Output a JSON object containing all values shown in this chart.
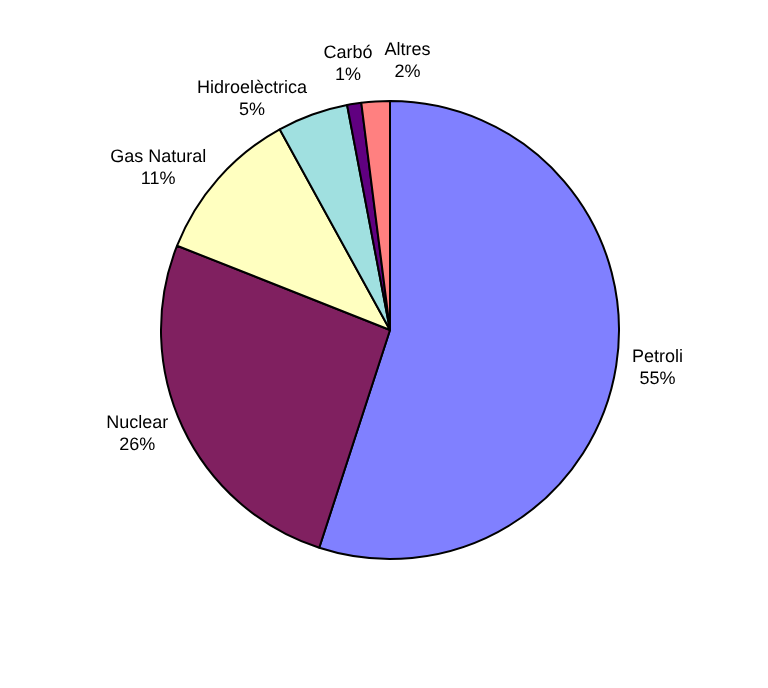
{
  "chart_data": {
    "type": "pie",
    "categories": [
      "Petroli",
      "Nuclear",
      "Gas Natural",
      "Hidroelèctrica",
      "Carbó",
      "Altres"
    ],
    "values": [
      55,
      26,
      11,
      5,
      1,
      2
    ],
    "colors": [
      "#8080ff",
      "#802060",
      "#ffffc0",
      "#a0e0e0",
      "#600080",
      "#ff8080"
    ],
    "value_labels": [
      "55%",
      "26%",
      "11%",
      "5%",
      "1%",
      "2%"
    ],
    "legend": false
  }
}
